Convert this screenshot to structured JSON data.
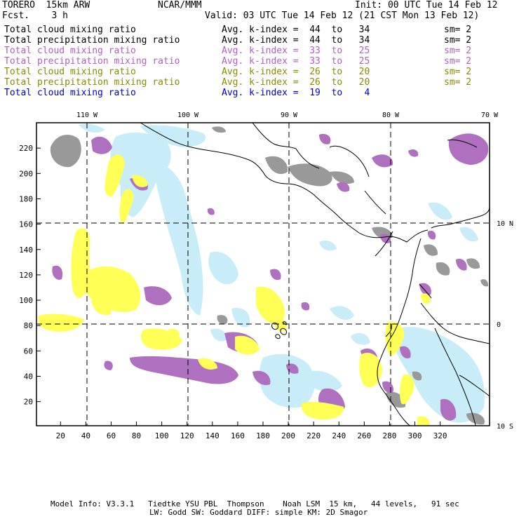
{
  "header": {
    "model": "TORERO  15km ARW",
    "org": "NCAR/MMM",
    "init": "Init: 00 UTC Tue 14 Feb 12",
    "fcst": "Fcst.    3 h",
    "valid": "Valid: 03 UTC Tue 14 Feb 12 (21 CST Mon 13 Feb 12)"
  },
  "legend": [
    {
      "name": "Total cloud mixing ratio",
      "kindex": "Avg. k-index =  44  to   34",
      "sm": "sm= 2",
      "color": "#000000"
    },
    {
      "name": "Total precipitation mixing ratio",
      "kindex": "Avg. k-index =  44  to   34",
      "sm": "sm= 2",
      "color": "#000000"
    },
    {
      "name": "Total cloud mixing ratio",
      "kindex": "Avg. k-index =  33  to   25",
      "sm": "sm= 2",
      "color": "#b060c0"
    },
    {
      "name": "Total precipitation mixing ratio",
      "kindex": "Avg. k-index =  33  to   25",
      "sm": "sm= 2",
      "color": "#b060c0"
    },
    {
      "name": "Total cloud mixing ratio",
      "kindex": "Avg. k-index =  26  to   20",
      "sm": "sm= 2",
      "color": "#8a8a00"
    },
    {
      "name": "Total precipitation mixing ratio",
      "kindex": "Avg. k-index =  26  to   20",
      "sm": "sm= 2",
      "color": "#8a8a00"
    },
    {
      "name": "Total cloud mixing ratio",
      "kindex": "Avg. k-index =  19  to    4",
      "sm": "",
      "color": "#0000cc"
    }
  ],
  "map": {
    "top_lon_labels": [
      "110 W",
      "100 W",
      "90 W",
      "80 W",
      "70 W"
    ],
    "right_lat_labels": [
      "10 N",
      "0",
      "10 S"
    ],
    "y_ticks": [
      "220",
      "200",
      "180",
      "160",
      "140",
      "120",
      "100",
      "80",
      "60",
      "40",
      "20"
    ],
    "x_ticks": [
      "20",
      "40",
      "60",
      "80",
      "100",
      "120",
      "140",
      "160",
      "180",
      "200",
      "220",
      "240",
      "260",
      "280",
      "300",
      "320"
    ],
    "colors": {
      "gray": "#999999",
      "purple": "#b070c0",
      "yellow": "#ffff55",
      "lightblue": "#c8ecf8",
      "coast": "#000000"
    }
  },
  "footer": {
    "line1": "Model Info: V3.3.1   Tiedtke YSU PBL  Thompson    Noah LSM  15 km,   44 levels,   91 sec",
    "line2": "LW: Godd SW: Goddard DIFF: simple KM: 2D Smagor"
  }
}
